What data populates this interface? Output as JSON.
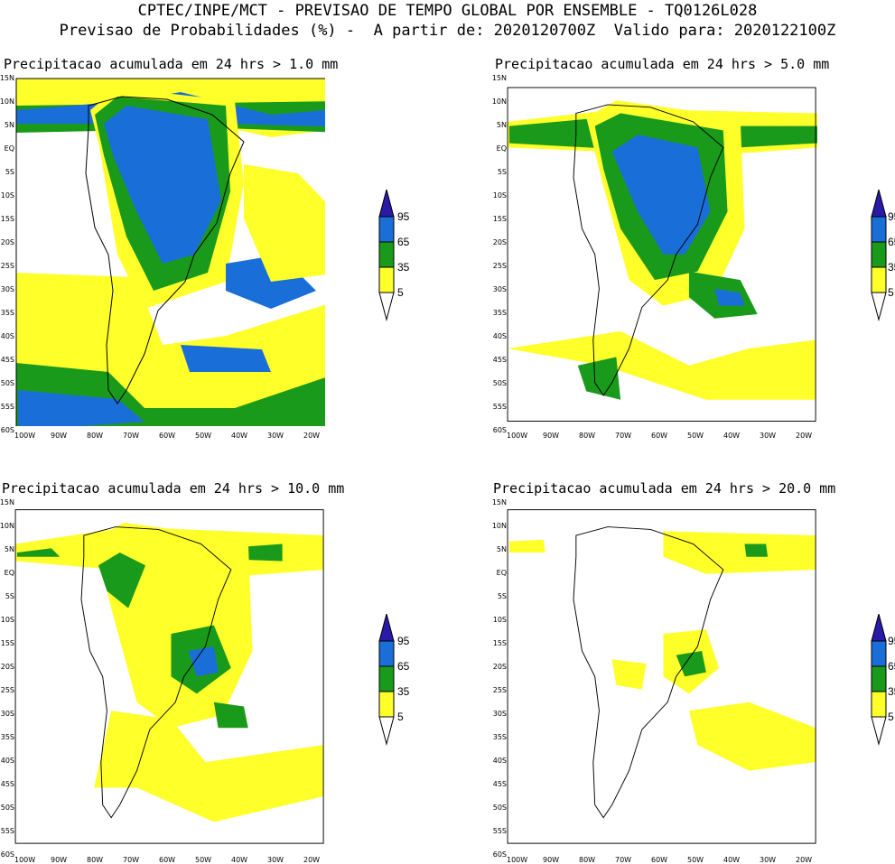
{
  "header": {
    "line1": "CPTEC/INPE/MCT - PREVISAO DE TEMPO GLOBAL POR ENSEMBLE - TQ0126L028",
    "line2": "Previsao de Probabilidades (%) -  A partir de: 2020120700Z  Valido para: 2020122100Z"
  },
  "axes": {
    "lat_labels": [
      "15N",
      "10N",
      "5N",
      "EQ",
      "5S",
      "10S",
      "15S",
      "20S",
      "25S",
      "30S",
      "35S",
      "40S",
      "45S",
      "50S",
      "55S",
      "60S"
    ],
    "lon_labels": [
      "100W",
      "90W",
      "80W",
      "70W",
      "60W",
      "50W",
      "40W",
      "30W",
      "20W"
    ]
  },
  "legend": {
    "levels": [
      "95",
      "65",
      "35",
      "5"
    ],
    "colors": {
      "c95": "#2a1aa8",
      "c65": "#1a6ed8",
      "c35": "#1a9a1a",
      "c5": "#ffff2a"
    }
  },
  "panels": [
    {
      "title": "Precipitacao acumulada em 24 hrs > 1.0 mm"
    },
    {
      "title": "Precipitacao acumulada em 24 hrs > 5.0 mm"
    },
    {
      "title": "Precipitacao acumulada em 24 hrs > 10.0 mm"
    },
    {
      "title": "Precipitacao acumulada em 24 hrs > 20.0 mm"
    }
  ]
}
